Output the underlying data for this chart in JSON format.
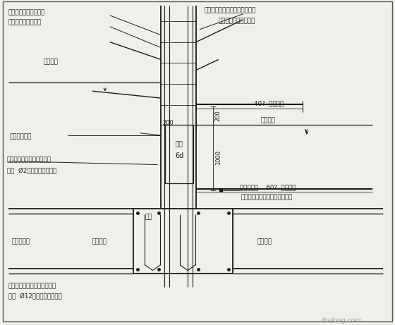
{
  "bg_color": "#f0f0eb",
  "line_color": "#1a1a1a",
  "text_color": "#1a1a1a",
  "fig_width": 5.6,
  "fig_height": 4.61,
  "watermark": "zhulong.com",
  "ann": {
    "tl1": "事近引出线的两个套管",
    "tl2": "箍与暗装引下线焊接",
    "indoor": "室内地面",
    "col_steel": "柱内纵向钢筋",
    "col_main1": "柱身两条主筋各加一条帮加",
    "col_main2": "钢筋  Ø2与箍索引下线焊接",
    "tr1": "地极引出线与柱内纵向钢筋焊接",
    "tr2": "（伴接地电阻测试点）",
    "steel40": "40?  镀锌扁钢",
    "outdoor": "室外地面",
    "ground60": "接地连接线    60?  镀锌扁钢",
    "to_equip": "至调各保安设机组（联合接地）",
    "d200h": "200",
    "d200v": "200",
    "d1000": "1000",
    "pile_cap": "桩帽",
    "found1": "基础梁底筋",
    "pile1": "桩身主筋",
    "pile2": "桩身主筋",
    "found2a": "基础梁两条底筋各加一条帮加",
    "found2b": "钢筋  Ø12与箍索引下线焊接",
    "dian_zhuang": "电桩",
    "liu_d": "6d"
  }
}
